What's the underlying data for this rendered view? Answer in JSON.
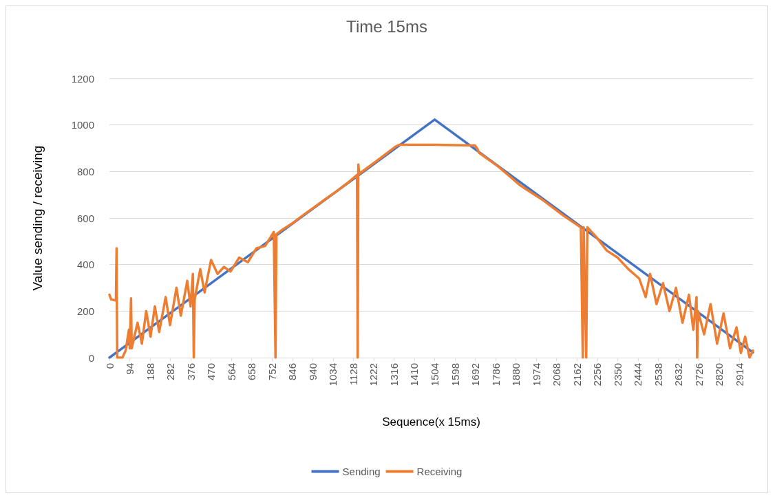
{
  "chart_data": {
    "type": "line",
    "title": "Time 15ms",
    "xlabel": "Sequence(x 15ms)",
    "ylabel": "Value sending / receiving",
    "xlim": [
      0,
      2976
    ],
    "xticks": [
      0,
      94,
      188,
      282,
      376,
      470,
      564,
      658,
      752,
      846,
      940,
      1034,
      1128,
      1222,
      1316,
      1410,
      1504,
      1598,
      1692,
      1786,
      1880,
      1974,
      2068,
      2162,
      2256,
      2350,
      2444,
      2538,
      2632,
      2726,
      2820,
      2914
    ],
    "ylim": [
      0,
      1200
    ],
    "yticks": [
      0,
      200,
      400,
      600,
      800,
      1000,
      1200
    ],
    "grid": "y",
    "legend": "bottom",
    "marker": "none",
    "line_style": "solid",
    "series": [
      {
        "name": "Sending",
        "color": "#4472c4",
        "x": [
          0,
          1504,
          2976
        ],
        "values": [
          0,
          1023,
          22
        ]
      },
      {
        "name": "Receiving",
        "color": "#ed7d31",
        "x": [
          0,
          8,
          30,
          33,
          36,
          60,
          75,
          90,
          94,
          100,
          103,
          130,
          150,
          170,
          190,
          210,
          230,
          260,
          280,
          310,
          330,
          360,
          375,
          386,
          390,
          394,
          420,
          440,
          470,
          500,
          530,
          560,
          600,
          640,
          680,
          720,
          760,
          768,
          772,
          800,
          850,
          900,
          950,
          1000,
          1050,
          1100,
          1145,
          1148,
          1151,
          1155,
          1250,
          1320,
          1340,
          1500,
          1690,
          1700,
          1710,
          1800,
          1900,
          2000,
          2100,
          2180,
          2189,
          2193,
          2205,
          2210,
          2250,
          2300,
          2350,
          2400,
          2450,
          2480,
          2500,
          2530,
          2560,
          2590,
          2620,
          2650,
          2680,
          2700,
          2715,
          2718,
          2722,
          2750,
          2780,
          2810,
          2840,
          2870,
          2900,
          2920,
          2940,
          2960,
          2976
        ],
        "values": [
          270,
          250,
          245,
          470,
          0,
          0,
          30,
          120,
          40,
          255,
          40,
          150,
          60,
          200,
          90,
          220,
          110,
          260,
          140,
          300,
          180,
          330,
          220,
          360,
          0,
          250,
          380,
          280,
          420,
          360,
          390,
          370,
          430,
          410,
          470,
          480,
          540,
          0,
          530,
          550,
          580,
          615,
          648,
          682,
          715,
          750,
          785,
          0,
          830,
          790,
          855,
          905,
          915,
          915,
          912,
          900,
          880,
          820,
          740,
          680,
          610,
          560,
          0,
          560,
          0,
          560,
          520,
          460,
          430,
          380,
          340,
          260,
          360,
          230,
          320,
          200,
          300,
          150,
          270,
          120,
          260,
          0,
          200,
          100,
          230,
          60,
          190,
          40,
          130,
          20,
          90,
          0,
          30
        ]
      }
    ]
  }
}
